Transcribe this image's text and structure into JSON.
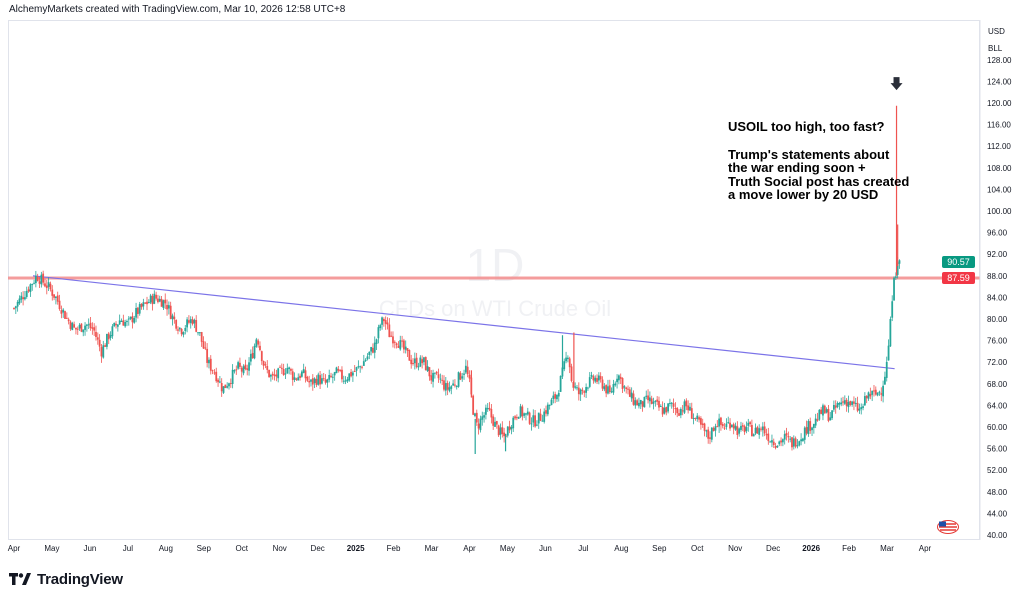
{
  "attribution": "AlchemyMarkets created with TradingView.com, Mar 10, 2026 12:58 UTC+8",
  "watermark": {
    "interval": "1D",
    "symbol_name": "CFDs on WTI Crude Oil"
  },
  "annotation": {
    "line1": "USOIL too high, too fast?",
    "line2": "Trump's statements about",
    "line3": "the war ending soon +",
    "line4": "Truth Social post has created",
    "line5": "a move lower by 20 USD"
  },
  "price_axis": {
    "currency": "USD",
    "unit": "BLL"
  },
  "footer": {
    "brand": "TradingView"
  },
  "colors": {
    "up": "#26a69a",
    "down": "#ef5350",
    "support": "#f28b8b",
    "trendline": "#7b73e8",
    "last_price": "#089981",
    "level_tag": "#f23645"
  },
  "chart_data": {
    "type": "candlestick",
    "ylim": [
      40,
      128
    ],
    "y_ticks": [
      40,
      44,
      48,
      52,
      56,
      60,
      64,
      68,
      72,
      76,
      80,
      84,
      88,
      92,
      96,
      100,
      104,
      108,
      112,
      116,
      120,
      124,
      128
    ],
    "y_tick_labels": [
      "40.00",
      "44.00",
      "48.00",
      "52.00",
      "56.00",
      "60.00",
      "64.00",
      "68.00",
      "72.00",
      "76.00",
      "80.00",
      "84.00",
      "88.00",
      "92.00",
      "96.00",
      "100.00",
      "104.00",
      "108.00",
      "112.00",
      "116.00",
      "120.00",
      "124.00",
      "128.00"
    ],
    "x_labels": [
      "Apr",
      "May",
      "Jun",
      "Jul",
      "Aug",
      "Sep",
      "Oct",
      "Nov",
      "Dec",
      "2025",
      "Feb",
      "Mar",
      "Apr",
      "May",
      "Jun",
      "Jul",
      "Aug",
      "Sep",
      "Oct",
      "Nov",
      "Dec",
      "2026",
      "Feb",
      "Mar",
      "Apr"
    ],
    "x_range_months": [
      0,
      24.9
    ],
    "grid": false,
    "last_price": {
      "value": 90.57,
      "label": "90.57"
    },
    "horizontal_level": {
      "value": 87.59,
      "label": "87.59"
    },
    "trendline": {
      "from": {
        "month": 0.5,
        "value": 88.0
      },
      "to": {
        "month": 23.2,
        "value": 70.8
      }
    },
    "arrow_marker": {
      "month": 23.25,
      "value": 123.5
    },
    "path_points": [
      [
        0.0,
        82
      ],
      [
        0.3,
        85
      ],
      [
        0.6,
        88
      ],
      [
        0.9,
        86
      ],
      [
        1.1,
        84
      ],
      [
        1.4,
        80
      ],
      [
        1.6,
        78
      ],
      [
        1.9,
        79
      ],
      [
        2.1,
        78
      ],
      [
        2.3,
        74
      ],
      [
        2.5,
        77
      ],
      [
        2.8,
        80
      ],
      [
        3.0,
        79
      ],
      [
        3.2,
        81
      ],
      [
        3.5,
        83
      ],
      [
        3.7,
        84
      ],
      [
        4.0,
        83
      ],
      [
        4.2,
        80
      ],
      [
        4.4,
        78
      ],
      [
        4.7,
        80
      ],
      [
        4.9,
        77
      ],
      [
        5.1,
        72
      ],
      [
        5.3,
        70
      ],
      [
        5.5,
        67
      ],
      [
        5.7,
        69
      ],
      [
        5.9,
        71
      ],
      [
        6.1,
        70
      ],
      [
        6.3,
        74
      ],
      [
        6.4,
        77
      ],
      [
        6.6,
        71
      ],
      [
        6.8,
        69
      ],
      [
        7.0,
        70
      ],
      [
        7.2,
        71
      ],
      [
        7.4,
        69
      ],
      [
        7.6,
        70
      ],
      [
        7.8,
        68
      ],
      [
        8.0,
        69
      ],
      [
        8.2,
        68
      ],
      [
        8.5,
        70
      ],
      [
        8.7,
        69
      ],
      [
        8.9,
        70
      ],
      [
        9.1,
        71
      ],
      [
        9.3,
        73
      ],
      [
        9.5,
        75
      ],
      [
        9.65,
        79
      ],
      [
        9.75,
        80
      ],
      [
        9.9,
        77
      ],
      [
        10.1,
        76
      ],
      [
        10.3,
        74
      ],
      [
        10.5,
        72
      ],
      [
        10.8,
        72
      ],
      [
        11.0,
        69
      ],
      [
        11.2,
        69
      ],
      [
        11.4,
        67
      ],
      [
        11.6,
        68
      ],
      [
        11.8,
        70
      ],
      [
        11.9,
        71
      ],
      [
        12.0,
        68
      ],
      [
        12.1,
        63
      ],
      [
        12.2,
        60
      ],
      [
        12.35,
        62
      ],
      [
        12.5,
        63
      ],
      [
        12.7,
        60
      ],
      [
        12.9,
        58
      ],
      [
        13.1,
        61
      ],
      [
        13.3,
        63
      ],
      [
        13.5,
        62
      ],
      [
        13.7,
        61
      ],
      [
        13.9,
        62
      ],
      [
        14.1,
        64
      ],
      [
        14.3,
        66
      ],
      [
        14.45,
        70
      ],
      [
        14.6,
        74
      ],
      [
        14.7,
        68
      ],
      [
        14.9,
        66
      ],
      [
        15.1,
        68
      ],
      [
        15.3,
        69
      ],
      [
        15.5,
        68
      ],
      [
        15.7,
        66
      ],
      [
        15.9,
        70
      ],
      [
        16.1,
        67
      ],
      [
        16.3,
        65
      ],
      [
        16.5,
        64
      ],
      [
        16.7,
        65
      ],
      [
        16.9,
        64
      ],
      [
        17.1,
        63
      ],
      [
        17.3,
        64
      ],
      [
        17.5,
        63
      ],
      [
        17.7,
        64
      ],
      [
        17.9,
        62
      ],
      [
        18.1,
        60
      ],
      [
        18.3,
        58
      ],
      [
        18.5,
        61
      ],
      [
        18.7,
        60
      ],
      [
        18.9,
        61
      ],
      [
        19.1,
        59
      ],
      [
        19.3,
        60
      ],
      [
        19.5,
        59
      ],
      [
        19.7,
        60
      ],
      [
        19.9,
        58
      ],
      [
        20.1,
        57
      ],
      [
        20.3,
        58
      ],
      [
        20.5,
        57
      ],
      [
        20.7,
        58
      ],
      [
        20.9,
        60
      ],
      [
        21.1,
        61
      ],
      [
        21.3,
        63
      ],
      [
        21.5,
        62
      ],
      [
        21.7,
        64
      ],
      [
        21.9,
        65
      ],
      [
        22.1,
        64
      ],
      [
        22.3,
        63
      ],
      [
        22.5,
        66
      ],
      [
        22.7,
        66
      ],
      [
        22.85,
        67
      ],
      [
        22.95,
        70
      ],
      [
        23.0,
        72
      ],
      [
        23.05,
        76
      ],
      [
        23.1,
        80
      ],
      [
        23.15,
        86
      ],
      [
        23.2,
        90
      ],
      [
        23.25,
        88
      ],
      [
        23.3,
        91
      ],
      [
        23.35,
        90.57
      ]
    ],
    "spikes": [
      {
        "month": 23.25,
        "high": 119.5,
        "color": "#ef5350"
      },
      {
        "month": 23.28,
        "high": 97.5,
        "color": "#ef5350"
      },
      {
        "month": 14.45,
        "high": 77.0,
        "color": "#26a69a"
      },
      {
        "month": 14.75,
        "high": 77.5,
        "color": "#ef5350"
      },
      {
        "month": 12.05,
        "high": 70.5,
        "color": "#ef5350"
      },
      {
        "month": 12.15,
        "low": 55.0,
        "color": "#26a69a"
      },
      {
        "month": 12.95,
        "low": 55.5,
        "color": "#26a69a"
      }
    ]
  }
}
